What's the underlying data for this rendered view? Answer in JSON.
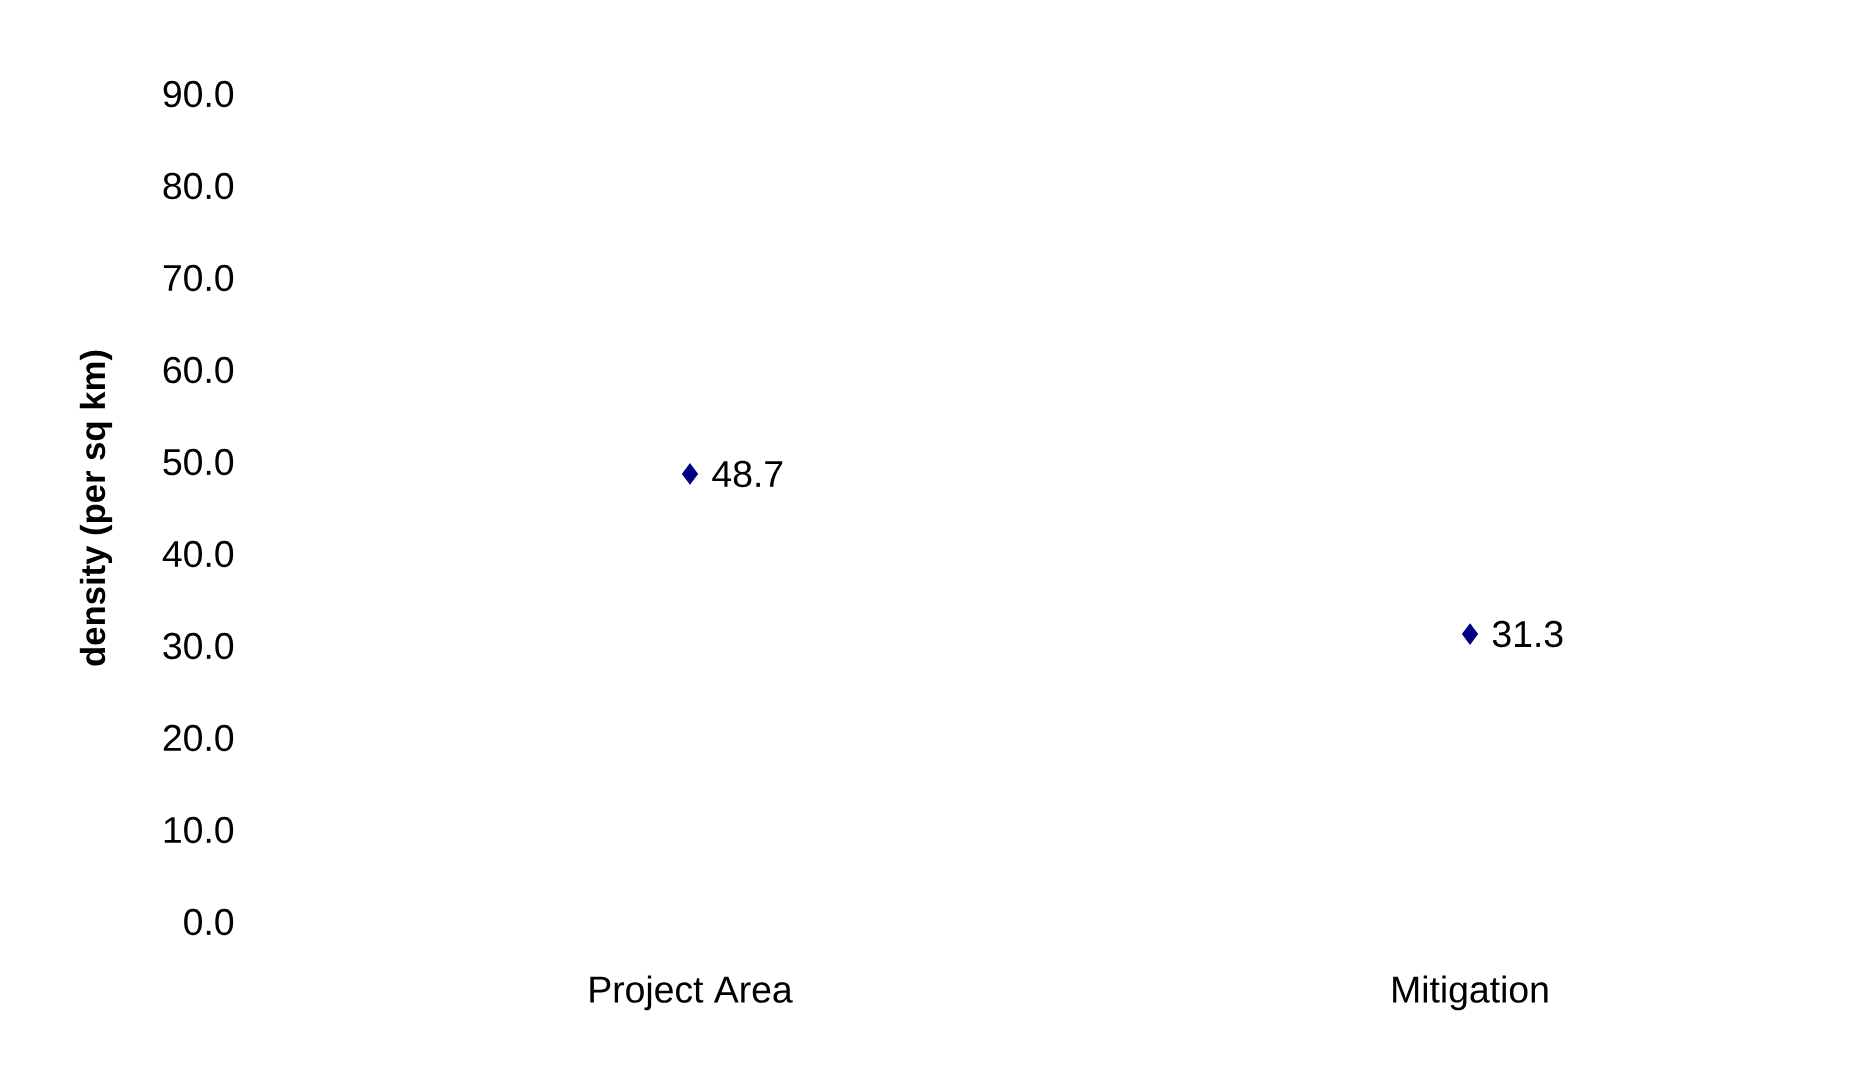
{
  "chart_data": {
    "type": "scatter",
    "ylabel": "density (per sq km)",
    "categories": [
      "Project Area",
      "Mitigation"
    ],
    "values": [
      48.7,
      31.3
    ],
    "color": "#000080",
    "marker": "diamond",
    "data_labels": true,
    "ylim": [
      0,
      90
    ],
    "yticks": [
      {
        "value": 0,
        "label": "0.0"
      },
      {
        "value": 10,
        "label": "10.0"
      },
      {
        "value": 20,
        "label": "20.0"
      },
      {
        "value": 30,
        "label": "30.0"
      },
      {
        "value": 40,
        "label": "40.0"
      },
      {
        "value": 50,
        "label": "50.0"
      },
      {
        "value": 60,
        "label": "60.0"
      },
      {
        "value": 70,
        "label": "70.0"
      },
      {
        "value": 80,
        "label": "80.0"
      },
      {
        "value": 90,
        "label": "90.0"
      }
    ],
    "grid": false
  }
}
